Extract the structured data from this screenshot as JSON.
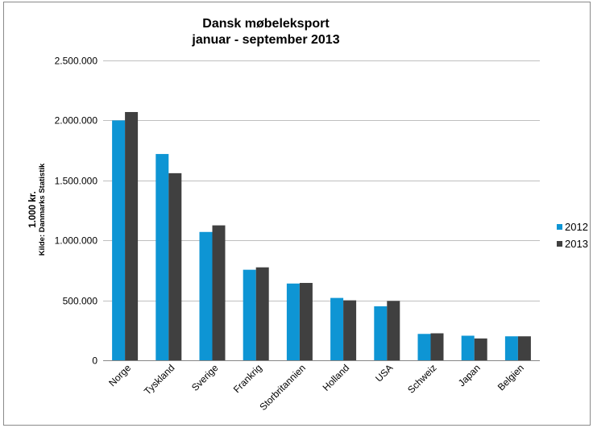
{
  "chart_data": {
    "type": "bar",
    "title": "Dansk møbeleksport",
    "subtitle": "januar - september 2013",
    "ylabel": "1.000 kr.",
    "ylabel_note": "Kilde: Danmarks Statistik",
    "xlabel": "",
    "categories": [
      "Norge",
      "Tyskland",
      "Sverige",
      "Frankrig",
      "Storbritannien",
      "Holland",
      "USA",
      "Schweiz",
      "Japan",
      "Belgien"
    ],
    "series": [
      {
        "name": "2012",
        "color": "#0e95d4",
        "values": [
          2000000,
          1720000,
          1070000,
          755000,
          640000,
          520000,
          450000,
          220000,
          205000,
          200000
        ]
      },
      {
        "name": "2013",
        "color": "#404040",
        "values": [
          2070000,
          1560000,
          1125000,
          775000,
          645000,
          500000,
          495000,
          225000,
          182000,
          200000
        ]
      }
    ],
    "ylim": [
      0,
      2500000
    ],
    "yticks": [
      0,
      500000,
      1000000,
      1500000,
      2000000,
      2500000
    ],
    "ytick_labels": [
      "0",
      "500.000",
      "1.000.000",
      "1.500.000",
      "2.000.000",
      "2.500.000"
    ],
    "grid": true,
    "legend_position": "right"
  }
}
